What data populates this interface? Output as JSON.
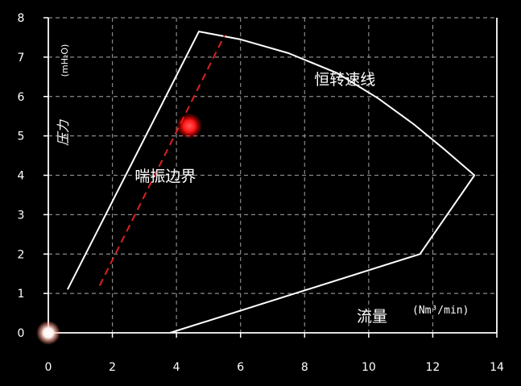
{
  "chart_data": {
    "type": "line",
    "xlim": [
      0,
      14
    ],
    "ylim": [
      0,
      8
    ],
    "x_ticks": [
      "0",
      "2",
      "4",
      "6",
      "8",
      "10",
      "12",
      "14"
    ],
    "y_ticks": [
      "0",
      "1",
      "2",
      "3",
      "4",
      "5",
      "6",
      "7",
      "8"
    ],
    "grid": true,
    "xlabel": "流量",
    "xunit": "(Nm³/min)",
    "ylabel": "压力",
    "yunit": "(mH₂O)",
    "series": [
      {
        "name": "恒转速线",
        "color": "#ffffff",
        "x": [
          0.6,
          4.7,
          6.0,
          7.5,
          9.0,
          10.3,
          11.4,
          12.3,
          13.3,
          11.6,
          3.8
        ],
        "y": [
          1.1,
          7.65,
          7.45,
          7.1,
          6.6,
          5.95,
          5.3,
          4.7,
          4.0,
          2.0,
          0.0
        ]
      },
      {
        "name": "喘振边界",
        "color": "#e02020",
        "dashed": true,
        "x": [
          1.6,
          5.5
        ],
        "y": [
          1.2,
          7.55
        ]
      }
    ],
    "markers": [
      {
        "x": 4.4,
        "y": 5.25,
        "color": "#ff2a2a"
      },
      {
        "x": 0.0,
        "y": 0.0,
        "color": "#ffffff"
      }
    ],
    "annotations": [
      {
        "text": "恒转速线",
        "x": 8.3,
        "y": 6.3
      },
      {
        "text": "喘振边界",
        "x": 2.7,
        "y": 3.85
      }
    ]
  }
}
